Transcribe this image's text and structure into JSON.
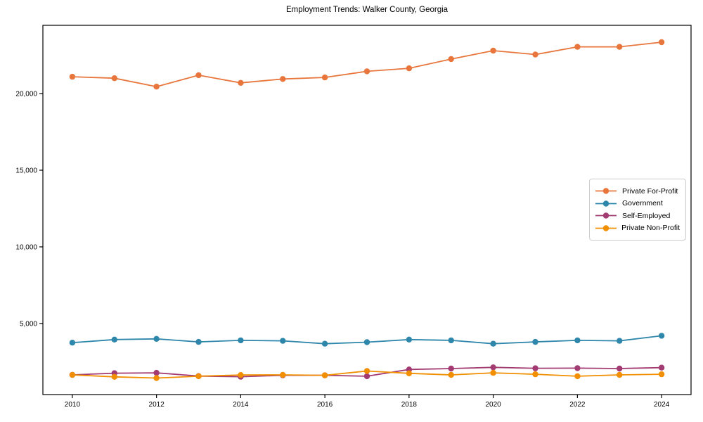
{
  "page": {
    "background_color": "#ffffff",
    "axis_color": "#000000",
    "legend_border_color": "#cccccc"
  },
  "chart_data": {
    "type": "line",
    "title": "Employment Trends: Walker County, Georgia",
    "xlabel": "",
    "ylabel": "",
    "grid": false,
    "legend_position": "center right",
    "x": [
      2010,
      2011,
      2012,
      2013,
      2014,
      2015,
      2016,
      2017,
      2018,
      2019,
      2020,
      2021,
      2022,
      2023,
      2024
    ],
    "xticks": [
      2010,
      2012,
      2014,
      2016,
      2018,
      2020,
      2022,
      2024
    ],
    "yticks": [
      5000,
      10000,
      15000,
      20000
    ],
    "xlim": [
      2009.3,
      2024.7
    ],
    "ylim": [
      364,
      24452
    ],
    "series": [
      {
        "name": "Private For-Profit",
        "color": "#E8763C",
        "values": [
          21100,
          21000,
          20450,
          21200,
          20700,
          20950,
          21050,
          21450,
          21650,
          22250,
          22800,
          22550,
          23050,
          23050,
          23350
        ]
      },
      {
        "name": "Government",
        "color": "#2E86AB",
        "values": [
          3750,
          3950,
          4000,
          3800,
          3900,
          3870,
          3680,
          3780,
          3950,
          3900,
          3680,
          3800,
          3900,
          3870,
          4200
        ]
      },
      {
        "name": "Self-Employed",
        "color": "#A23B72",
        "values": [
          1650,
          1760,
          1780,
          1570,
          1530,
          1620,
          1620,
          1560,
          2000,
          2060,
          2140,
          2080,
          2090,
          2060,
          2120
        ]
      },
      {
        "name": "Private Non-Profit",
        "color": "#F18F01",
        "values": [
          1650,
          1520,
          1440,
          1560,
          1640,
          1650,
          1620,
          1900,
          1750,
          1650,
          1780,
          1690,
          1560,
          1650,
          1690
        ]
      }
    ]
  }
}
